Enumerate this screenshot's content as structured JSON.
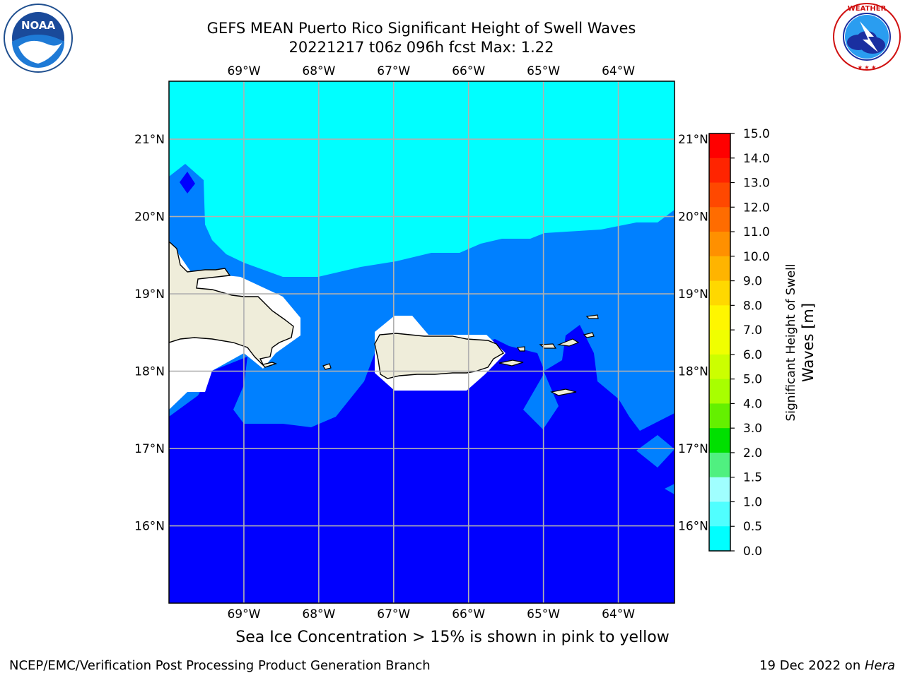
{
  "header": {
    "title_line1": "GEFS MEAN Puerto Rico Significant Height of Swell Waves",
    "title_line2": "20221217 t06z 096h fcst   Max: 1.22"
  },
  "logos": {
    "left": {
      "name": "noaa-logo",
      "text": "NOAA",
      "ring_text": "NATIONAL OCEANIC AND ATMOSPHERIC ADMINISTRATION · U.S. DEPARTMENT OF COMMERCE"
    },
    "right": {
      "name": "nws-logo",
      "ring_text": "NATIONAL WEATHER SERVICE"
    }
  },
  "map": {
    "lon_ticks": [
      "69°W",
      "68°W",
      "67°W",
      "66°W",
      "65°W",
      "64°W"
    ],
    "lat_ticks": [
      "21°N",
      "20°N",
      "19°N",
      "18°N",
      "17°N",
      "16°N"
    ],
    "extent": {
      "lon_min": -70.0,
      "lon_max": -63.25,
      "lat_min": 15.0,
      "lat_max": 21.75
    },
    "colors": {
      "land": "#efedda",
      "ocean_low": "#0000ff",
      "ocean_mid": "#0080ff",
      "ocean_high": "#00ffff",
      "grid": "#b0b0b0"
    }
  },
  "colorbar": {
    "label_line1": "Significant Height of Swell",
    "label_line2": "Waves [m]",
    "ticks": [
      "15.0",
      "14.0",
      "13.0",
      "12.0",
      "11.0",
      "10.0",
      "9.0",
      "8.0",
      "7.0",
      "6.0",
      "5.0",
      "4.0",
      "3.0",
      "2.0",
      "1.5",
      "1.0",
      "0.5",
      "0.0"
    ],
    "colors_top_to_bottom": [
      "#ff0000",
      "#ff2400",
      "#ff4800",
      "#ff6c00",
      "#ff9000",
      "#ffb400",
      "#ffd800",
      "#fff600",
      "#f0ff00",
      "#ccff00",
      "#a8ff00",
      "#64f000",
      "#00e000",
      "#50f080",
      "#a0ffff",
      "#50ffff",
      "#00ffff",
      "#0080ff",
      "#0000ff"
    ]
  },
  "caption": "Sea Ice Concentration > 15% is shown in pink to yellow",
  "footer": {
    "left": "NCEP/EMC/Verification Post Processing Product Generation Branch",
    "right_date": "19 Dec 2022 on ",
    "right_host": "Hera"
  }
}
